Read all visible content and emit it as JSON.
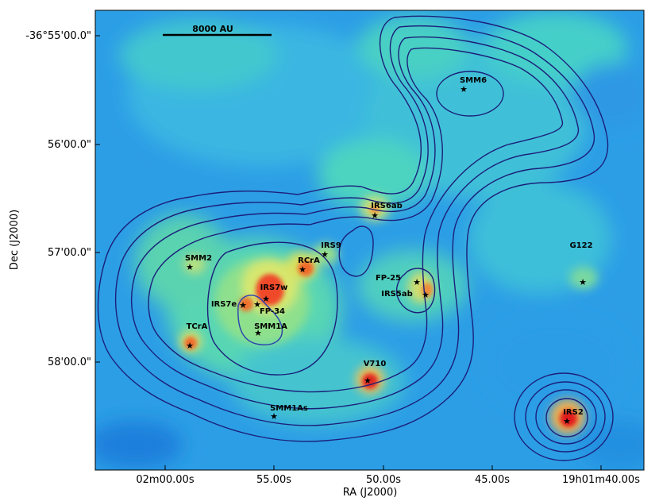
{
  "figure": {
    "x_axis_label": "RA (J2000)",
    "y_axis_label": "Dec (J2000)",
    "x_ticks": [
      "02m00.00s",
      "55.00s",
      "50.00s",
      "45.00s",
      "19h01m40.00s"
    ],
    "y_ticks": [
      "-36°55'00.0\"",
      "56'00.0\"",
      "57'00.0\"",
      "58'00.0\""
    ],
    "scale_bar": "8000 AU",
    "contour_color": "#1b1f7a",
    "colormap": "jet"
  },
  "sources": [
    {
      "name": "SMM6",
      "star": "source-star"
    },
    {
      "name": "IRS6ab",
      "star": "source-star"
    },
    {
      "name": "IRS9",
      "star": "source-star"
    },
    {
      "name": "SMM2",
      "star": "source-star"
    },
    {
      "name": "RCrA",
      "star": "source-star"
    },
    {
      "name": "IRS7w",
      "star": "source-star"
    },
    {
      "name": "IRS7e",
      "star": "source-star"
    },
    {
      "name": "FP-34",
      "star": "source-star"
    },
    {
      "name": "SMM1A",
      "star": "source-star"
    },
    {
      "name": "FP-25",
      "star": "source-star"
    },
    {
      "name": "IRS5ab",
      "star": "source-star"
    },
    {
      "name": "G122",
      "star": "source-star"
    },
    {
      "name": "TCrA",
      "star": "source-star"
    },
    {
      "name": "V710",
      "star": "source-star"
    },
    {
      "name": "SMM1As",
      "star": "source-star"
    },
    {
      "name": "IRS2",
      "star": "source-star"
    }
  ]
}
